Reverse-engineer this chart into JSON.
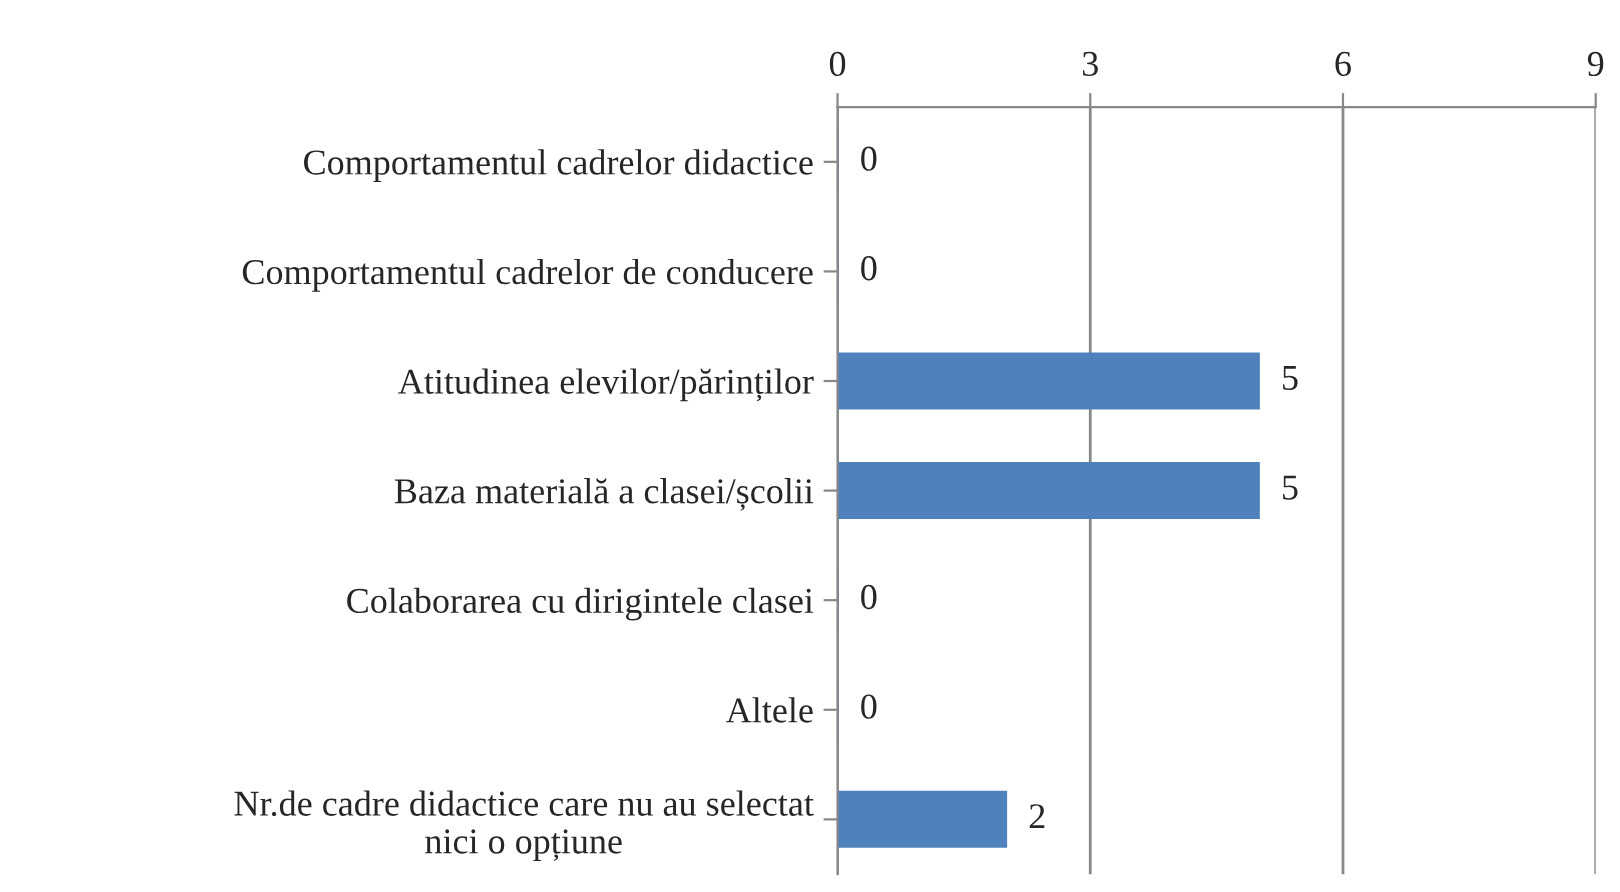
{
  "chart_data": {
    "type": "bar",
    "orientation": "horizontal",
    "categories": [
      "Comportamentul cadrelor didactice",
      "Comportamentul cadrelor de conducere",
      "Atitudinea elevilor/părinților",
      "Baza materială a clasei/școlii",
      "Colaborarea cu dirigintele clasei",
      "Altele",
      "Nr.de cadre didactice care nu au selectat\nnici o opțiune"
    ],
    "values": [
      0,
      0,
      5,
      5,
      0,
      0,
      2
    ],
    "color": "#4f81bd",
    "xlim": [
      0,
      9
    ],
    "xticks": [
      0,
      3,
      6,
      9
    ],
    "grid": "x",
    "data_labels": true
  }
}
